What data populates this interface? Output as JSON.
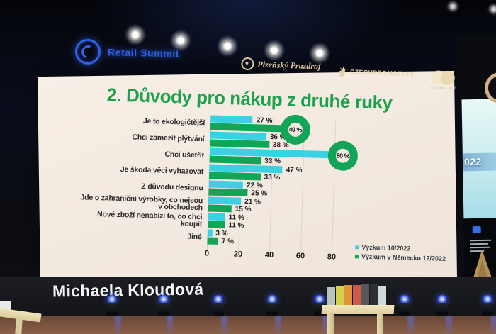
{
  "conference": {
    "logo_text": "Retail Summit",
    "sponsors": [
      {
        "name": "Plzeňský Prazdroj"
      },
      {
        "name": "CZECHPROMOTION"
      },
      {
        "name": "mastercard"
      }
    ]
  },
  "side_screen": {
    "text": "022"
  },
  "speaker": {
    "name": "Michaela Kloudová"
  },
  "chart_data": {
    "type": "bar",
    "orientation": "horizontal",
    "title": "2. Důvody pro nákup z druhé ruky",
    "categories": [
      "Je to ekologičtější",
      "Chci zamezit plýtvání",
      "Chci ušetřit",
      "Je škoda věci vyhazovat",
      "Z důvodu designu",
      "Jde o zahraniční výrobky, co nejsou v obchodech",
      "Nové zboží nenabízí to, co chci koupit",
      "Jiné"
    ],
    "series": [
      {
        "name": "Výzkum 10/2022",
        "color": "#3ad2e2",
        "values": [
          27,
          36,
          80,
          47,
          22,
          21,
          11,
          3
        ]
      },
      {
        "name": "Výzkum v Německu 12/2022",
        "color": "#12a557",
        "values": [
          49,
          38,
          33,
          33,
          25,
          15,
          11,
          7
        ]
      }
    ],
    "value_suffix": " %",
    "xticks": [
      0,
      20,
      40,
      60,
      80
    ],
    "xlim": [
      0,
      100
    ],
    "grid": true,
    "legend_position": "bottom-right",
    "title_color": "#1ea14b",
    "highlight_color": "#12a557",
    "highlights": [
      {
        "category_index": 0,
        "series_index": 1,
        "label": "49 %"
      },
      {
        "category_index": 2,
        "series_index": 0,
        "label": "80 %"
      }
    ]
  }
}
